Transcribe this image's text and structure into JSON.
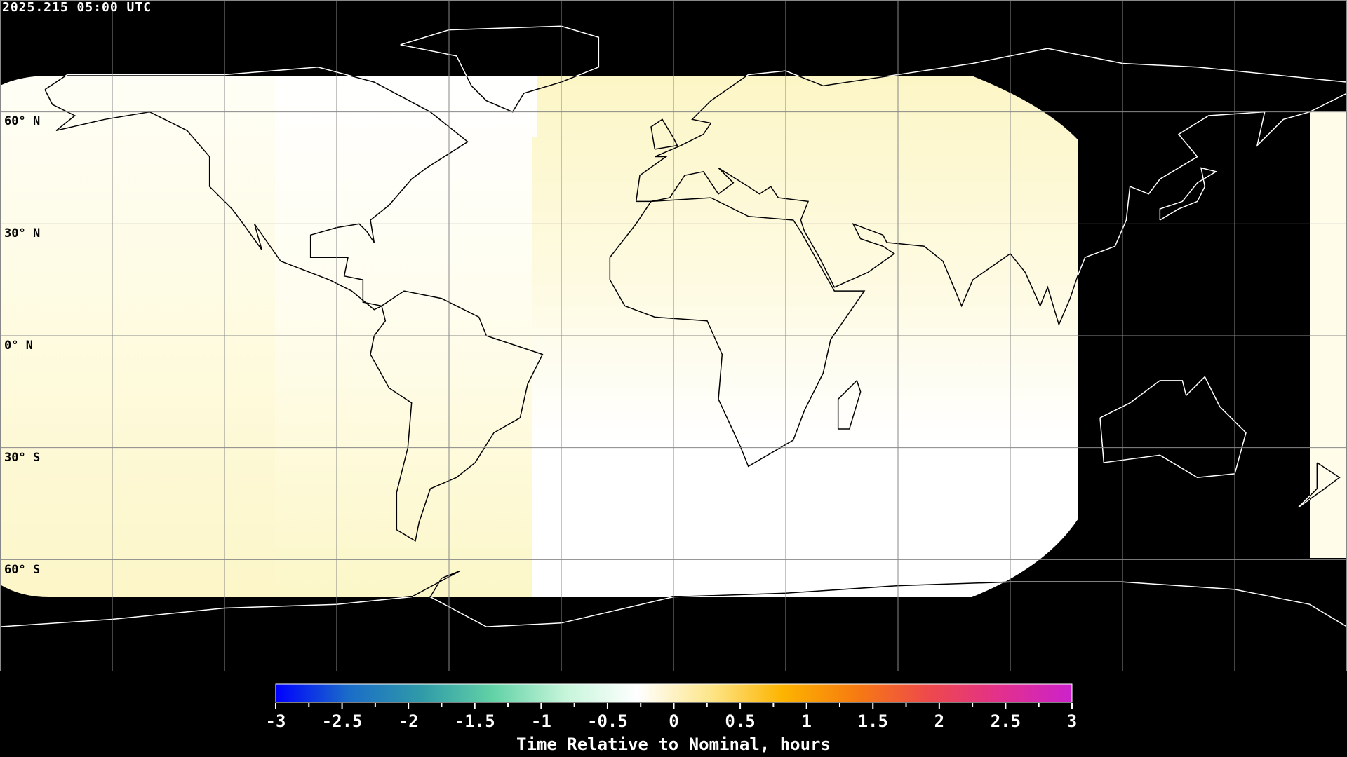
{
  "header": {
    "timestamp": "2025.215 05:00 UTC"
  },
  "map": {
    "projection": "equirectangular",
    "graticule_spacing_deg": 30,
    "lat_labels": [
      "60° N",
      "30° N",
      "0° N",
      "30° S",
      "60° S"
    ],
    "night_color": "#000000",
    "coast_color_day": "#000000",
    "coast_color_night": "#ffffff"
  },
  "colorbar": {
    "min": -3,
    "max": 3,
    "tick_labels": [
      "-3",
      "-2.5",
      "-2",
      "-1.5",
      "-1",
      "-0.5",
      "0",
      "0.5",
      "1",
      "1.5",
      "2",
      "2.5",
      "3"
    ],
    "label": "Time Relative to Nominal, hours",
    "colors": [
      "#0000ff",
      "#1a6cc8",
      "#2f9aa8",
      "#62d2a6",
      "#c6f5da",
      "#ffffff",
      "#fde68a",
      "#fdb400",
      "#f77c10",
      "#ee4a4a",
      "#e2308c",
      "#cc22cc"
    ]
  }
}
